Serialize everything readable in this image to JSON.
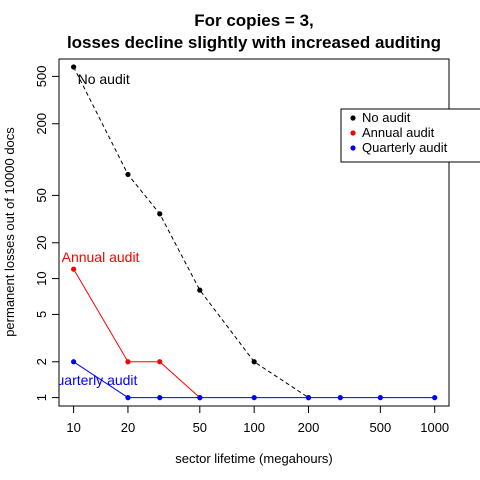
{
  "chart_data": {
    "type": "line",
    "title_line1": "For copies = 3,",
    "title_line2": "losses decline slightly with increased auditing",
    "xlabel": "sector lifetime (megahours)",
    "ylabel": "permanent losses out of 10000 docs",
    "x_scale": "log",
    "y_scale": "log",
    "xlim": [
      8.3,
      1200
    ],
    "ylim": [
      0.85,
      700
    ],
    "x_ticks": [
      10,
      20,
      50,
      100,
      200,
      500,
      1000
    ],
    "x_tick_labels": [
      "10",
      "20",
      "50",
      "100",
      "200",
      "500",
      "1000"
    ],
    "y_ticks": [
      1,
      2,
      5,
      10,
      20,
      50,
      200,
      500
    ],
    "y_tick_labels": [
      "1",
      "2",
      "5",
      "10",
      "20",
      "50",
      "200",
      "500"
    ],
    "grid": false,
    "legend": {
      "placement": "top-right",
      "entries": [
        "No audit",
        "Annual audit",
        "Quarterly audit"
      ]
    },
    "series": [
      {
        "name": "No audit",
        "color": "#000000",
        "line_style": "dashed",
        "x": [
          10,
          20,
          30,
          50,
          100,
          200
        ],
        "y": [
          600,
          75,
          35,
          8,
          2,
          1
        ]
      },
      {
        "name": "Annual audit",
        "color": "#ff0000",
        "line_style": "solid",
        "x": [
          10,
          20,
          30,
          50
        ],
        "y": [
          12,
          2,
          2,
          1
        ]
      },
      {
        "name": "Quarterly audit",
        "color": "#0000ff",
        "line_style": "solid",
        "x": [
          10,
          20,
          30,
          50,
          100,
          200,
          300,
          500,
          1000
        ],
        "y": [
          2,
          1,
          1,
          1,
          1,
          1,
          1,
          1,
          1
        ]
      }
    ],
    "annotations": [
      {
        "text": "No audit",
        "color": "#000000",
        "x": 10,
        "y": 600,
        "anchor": "start"
      },
      {
        "text": "Annual audit",
        "color": "#ff0000",
        "x": 10,
        "y": 12,
        "anchor": "start"
      },
      {
        "text": "Quarterly audit",
        "color": "#0000ff",
        "x": 10,
        "y": 2,
        "anchor": "start"
      }
    ]
  }
}
